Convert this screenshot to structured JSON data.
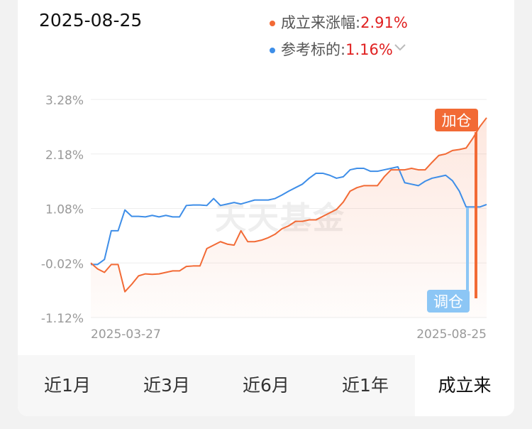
{
  "chart_data": {
    "type": "line",
    "selected_date": "2025-08-25",
    "categories": [
      "2025-03-27",
      null,
      null,
      null,
      null,
      null,
      null,
      null,
      null,
      null,
      null,
      null,
      null,
      null,
      null,
      null,
      null,
      null,
      null,
      null,
      null,
      null,
      null,
      null,
      null,
      null,
      null,
      null,
      null,
      null,
      null,
      null,
      null,
      null,
      null,
      null,
      null,
      null,
      null,
      null,
      null,
      null,
      null,
      null,
      null,
      null,
      null,
      null,
      null,
      null,
      null,
      null,
      null,
      null,
      null,
      null,
      null,
      null,
      "2025-08-25"
    ],
    "series": [
      {
        "name": "成立来涨幅:",
        "current_label": "2.91%",
        "color": "#f26a35",
        "values": [
          -0.02,
          -0.14,
          -0.21,
          -0.05,
          -0.05,
          -0.6,
          -0.45,
          -0.28,
          -0.24,
          -0.25,
          -0.24,
          -0.21,
          -0.18,
          -0.18,
          -0.09,
          -0.08,
          -0.08,
          0.27,
          0.34,
          0.41,
          0.36,
          0.34,
          0.63,
          0.41,
          0.41,
          0.44,
          0.49,
          0.56,
          0.67,
          0.73,
          0.82,
          0.82,
          0.85,
          0.85,
          0.92,
          0.99,
          1.06,
          1.21,
          1.43,
          1.5,
          1.54,
          1.54,
          1.54,
          1.72,
          1.86,
          1.86,
          1.86,
          1.89,
          1.86,
          1.86,
          2.01,
          2.15,
          2.18,
          2.25,
          2.27,
          2.3,
          2.5,
          2.73,
          2.91
        ]
      },
      {
        "name": "参考标的:",
        "current_label": "1.16%",
        "color": "#3e8ee8",
        "values": [
          -0.05,
          -0.05,
          0.05,
          0.63,
          0.63,
          1.05,
          0.92,
          0.92,
          0.91,
          0.94,
          0.91,
          0.94,
          0.91,
          0.91,
          1.14,
          1.15,
          1.15,
          1.14,
          1.28,
          1.14,
          1.17,
          1.2,
          1.17,
          1.21,
          1.25,
          1.25,
          1.25,
          1.28,
          1.35,
          1.43,
          1.5,
          1.57,
          1.69,
          1.79,
          1.79,
          1.75,
          1.69,
          1.72,
          1.86,
          1.89,
          1.89,
          1.83,
          1.83,
          1.86,
          1.89,
          1.92,
          1.6,
          1.57,
          1.54,
          1.63,
          1.69,
          1.72,
          1.75,
          1.64,
          1.43,
          1.11,
          1.11,
          1.11,
          1.16
        ]
      }
    ],
    "ylim": [
      -1.12,
      3.28
    ],
    "yticks": [
      {
        "value": 3.28,
        "label": "3.28%"
      },
      {
        "value": 2.18,
        "label": "2.18%"
      },
      {
        "value": 1.08,
        "label": "1.08%"
      },
      {
        "value": -0.02,
        "label": "-0.02%"
      },
      {
        "value": -1.12,
        "label": "-1.12%"
      }
    ],
    "grid": true,
    "watermark": "天天基金",
    "annotations": [
      {
        "text": "加仓",
        "color": "#f26a35"
      },
      {
        "text": "调仓",
        "color": "#8cc6f5"
      }
    ],
    "tabs": [
      "近1月",
      "近3月",
      "近6月",
      "近1年",
      "成立来"
    ],
    "selected_tab": 4
  }
}
